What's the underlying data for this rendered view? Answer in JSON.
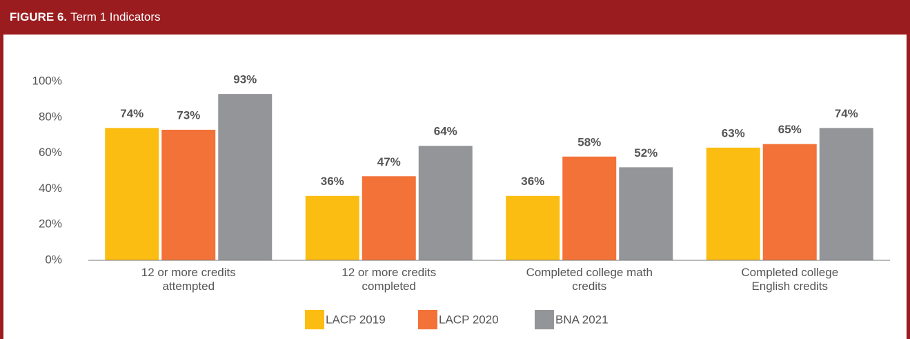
{
  "chart_data": {
    "type": "bar",
    "figure_label": "FIGURE 6.",
    "title": "Term 1 Indicators",
    "categories": [
      "12 or more credits attempted",
      "12 or more credits completed",
      "Completed college math credits",
      "Completed college English credits"
    ],
    "series": [
      {
        "name": "LACP 2019",
        "color": "#fcbd12",
        "values": [
          74,
          36,
          36,
          63
        ],
        "value_labels": [
          "74%",
          "36%",
          "36%",
          "63%"
        ]
      },
      {
        "name": "LACP 2020",
        "color": "#f37238",
        "values": [
          73,
          47,
          58,
          65
        ],
        "value_labels": [
          "73%",
          "47%",
          "58%",
          "65%"
        ]
      },
      {
        "name": "BNA 2021",
        "color": "#939598",
        "values": [
          93,
          64,
          52,
          74
        ],
        "value_labels": [
          "93%",
          "64%",
          "52%",
          "74%"
        ]
      }
    ],
    "ylim": [
      0,
      100
    ],
    "yticks": [
      {
        "value": 0,
        "label": "0%"
      },
      {
        "value": 20,
        "label": "20%"
      },
      {
        "value": 40,
        "label": "40%"
      },
      {
        "value": 60,
        "label": "60%"
      },
      {
        "value": 80,
        "label": "80%"
      },
      {
        "value": 100,
        "label": "100%"
      }
    ],
    "grid": false,
    "legend": "bottom"
  }
}
